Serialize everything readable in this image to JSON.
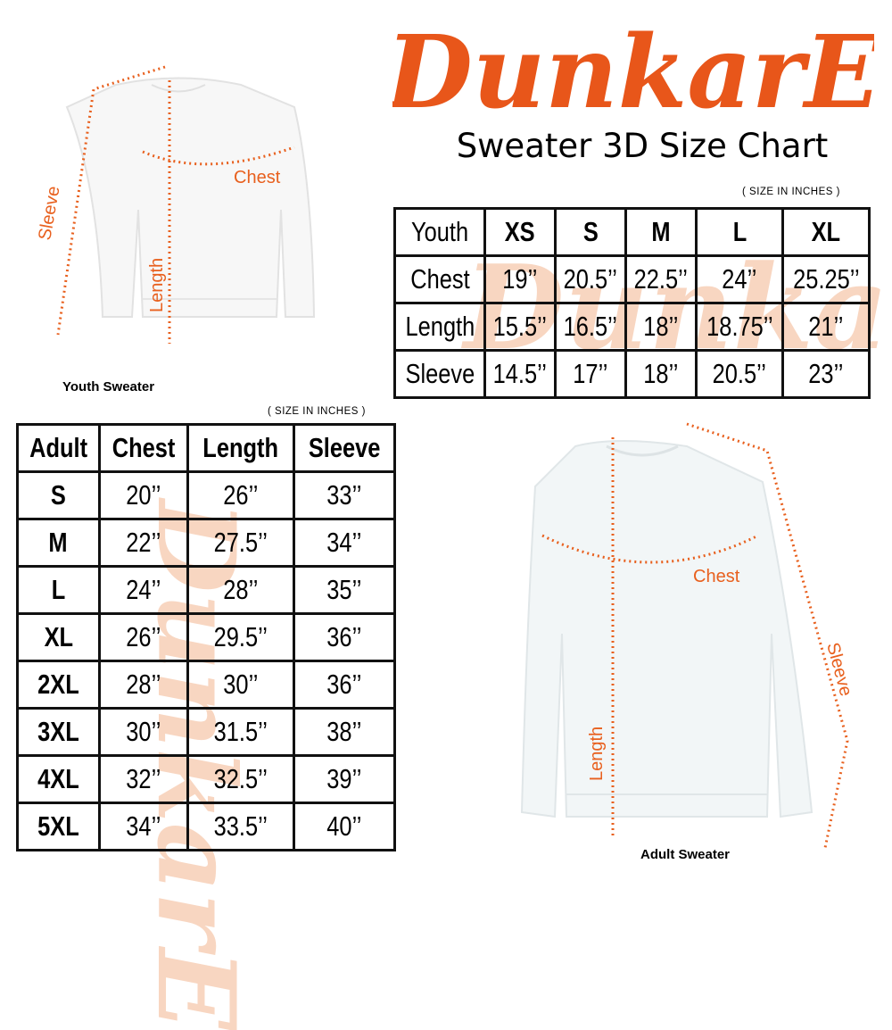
{
  "brand": {
    "logo_text": "DunkarE",
    "color": "#e8561a"
  },
  "title": "Sweater 3D Size Chart",
  "youth": {
    "units_note": "( SIZE IN INCHES )",
    "headers": [
      "Youth",
      "XS",
      "S",
      "M",
      "L",
      "XL"
    ],
    "rows": [
      [
        "Chest",
        "19’’",
        "20.5’’",
        "22.5’’",
        "24’’",
        "25.25’’"
      ],
      [
        "Length",
        "15.5’’",
        "16.5’’",
        "18’’",
        "18.75’’",
        "21’’"
      ],
      [
        "Sleeve",
        "14.5’’",
        "17’’",
        "18’’",
        "20.5’’",
        "23’’"
      ]
    ],
    "figure": {
      "label": "Youth Sweater",
      "chest": "Chest",
      "length": "Length",
      "sleeve": "Sleeve"
    }
  },
  "adult": {
    "units_note": "( SIZE IN INCHES )",
    "headers": [
      "Adult",
      "Chest",
      "Length",
      "Sleeve"
    ],
    "rows": [
      [
        "S",
        "20’’",
        "26’’",
        "33’’"
      ],
      [
        "M",
        "22’’",
        "27.5’’",
        "34’’"
      ],
      [
        "L",
        "24’’",
        "28’’",
        "35’’"
      ],
      [
        "XL",
        "26’’",
        "29.5’’",
        "36’’"
      ],
      [
        "2XL",
        "28’’",
        "30’’",
        "36’’"
      ],
      [
        "3XL",
        "30’’",
        "31.5’’",
        "38’’"
      ],
      [
        "4XL",
        "32’’",
        "32.5’’",
        "39’’"
      ],
      [
        "5XL",
        "34’’",
        "33.5’’",
        "40’’"
      ]
    ],
    "figure": {
      "label": "Adult Sweater",
      "chest": "Chest",
      "length": "Length",
      "sleeve": "Sleeve"
    }
  },
  "measure_color": "#e8601e"
}
